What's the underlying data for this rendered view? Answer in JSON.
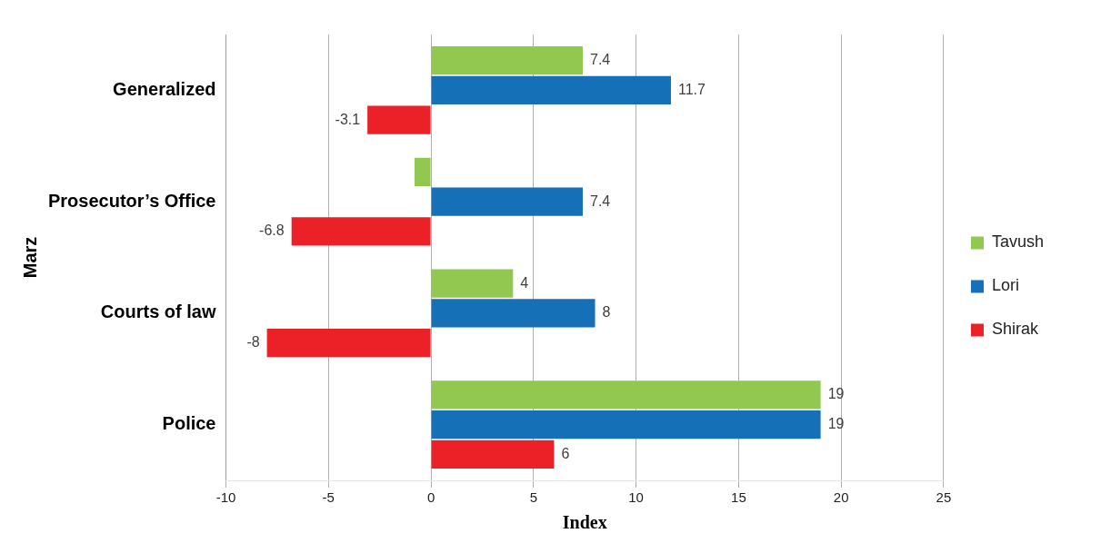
{
  "chart_data": {
    "type": "bar",
    "orientation": "horizontal",
    "xlabel": "Index",
    "ylabel": "Marz",
    "categories": [
      "Generalized",
      "Prosecutor’s Office",
      "Courts of law",
      "Police"
    ],
    "series": [
      {
        "name": "Tavush",
        "color": "#92c750",
        "values": [
          7.4,
          -0.8,
          4,
          19
        ],
        "value_labels": [
          "7.4",
          null,
          "4",
          "19"
        ]
      },
      {
        "name": "Lori",
        "color": "#1570b8",
        "values": [
          11.7,
          7.4,
          8,
          19
        ],
        "value_labels": [
          "11.7",
          "7.4",
          "8",
          "19"
        ]
      },
      {
        "name": "Shirak",
        "color": "#ec2127",
        "values": [
          -3.1,
          -6.8,
          -8,
          6
        ],
        "value_labels": [
          "-3.1",
          "-6.8",
          "-8",
          "6"
        ]
      }
    ],
    "xlim": [
      -10,
      25
    ],
    "xticks": [
      -10,
      -5,
      0,
      5,
      10,
      15,
      20,
      25
    ],
    "grid": "x",
    "legend": "right"
  }
}
